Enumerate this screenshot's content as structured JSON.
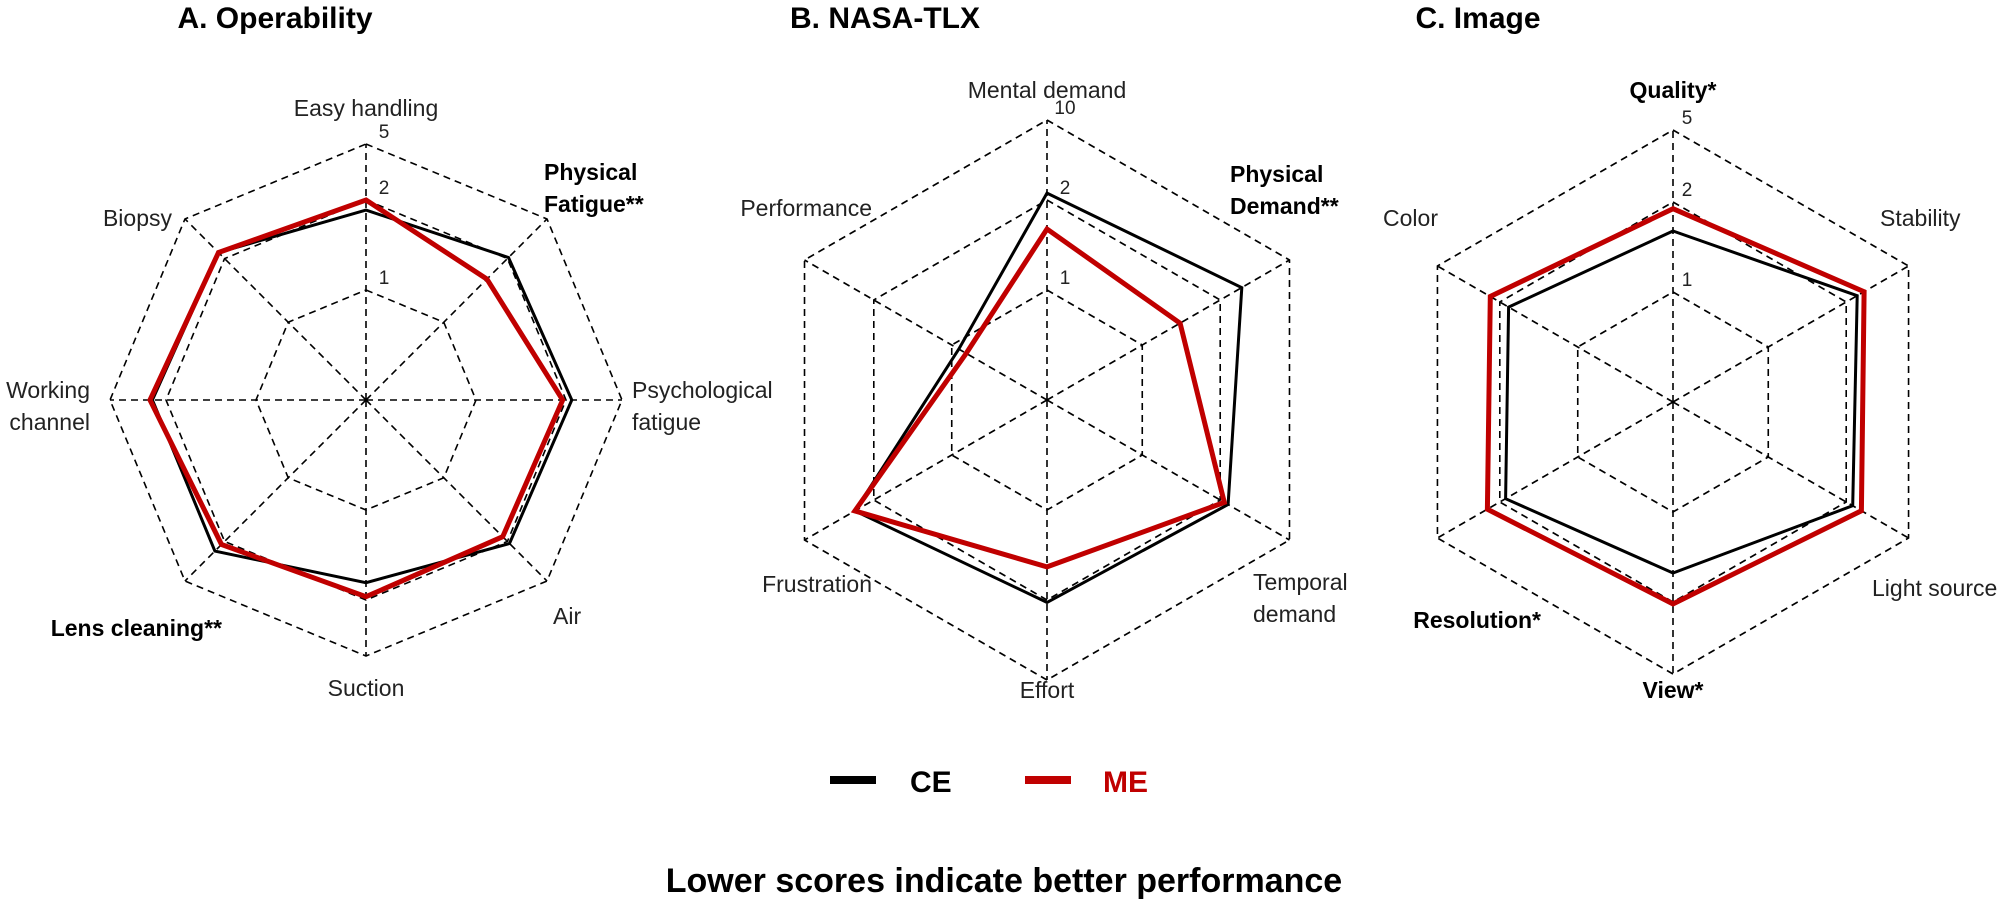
{
  "chart_data": [
    {
      "type": "radar",
      "title": "A. Operability",
      "axes": [
        {
          "label": [
            "Easy handling"
          ],
          "bold": false
        },
        {
          "label": [
            "Physical",
            "Fatigue**"
          ],
          "bold": true
        },
        {
          "label": [
            "Psychological",
            "fatigue"
          ],
          "bold": false
        },
        {
          "label": [
            "Air"
          ],
          "bold": false
        },
        {
          "label": [
            "Suction"
          ],
          "bold": false
        },
        {
          "label": [
            "Lens cleaning**"
          ],
          "bold": true
        },
        {
          "label": [
            "Working",
            "channel"
          ],
          "bold": false
        },
        {
          "label": [
            "Biopsy"
          ],
          "bold": false
        }
      ],
      "scale": "log",
      "range": [
        0.5,
        5
      ],
      "ticks": [
        {
          "value": 1,
          "label": "1"
        },
        {
          "value": 2,
          "label": "2"
        },
        {
          "value": 5,
          "label": "5"
        }
      ],
      "series": [
        {
          "name": "CE",
          "color": "#000000",
          "values": [
            1.85,
            2.05,
            2.2,
            2.1,
            1.75,
            2.5,
            2.5,
            2.3
          ]
        },
        {
          "name": "ME",
          "color": "#c00000",
          "values": [
            2.0,
            1.6,
            1.95,
            1.9,
            1.95,
            2.15,
            2.6,
            2.3
          ]
        }
      ]
    },
    {
      "type": "radar",
      "title": "B. NASA-TLX",
      "axes": [
        {
          "label": [
            "Mental demand"
          ],
          "bold": false
        },
        {
          "label": [
            "Physical",
            "Demand**"
          ],
          "bold": true
        },
        {
          "label": [
            "Temporal",
            "demand"
          ],
          "bold": false
        },
        {
          "label": [
            "Effort"
          ],
          "bold": false
        },
        {
          "label": [
            "Frustration"
          ],
          "bold": false
        },
        {
          "label": [
            "Performance"
          ],
          "bold": false
        }
      ],
      "scale": "log",
      "range": [
        0.5,
        10
      ],
      "ticks": [
        {
          "value": 1,
          "label": "1"
        },
        {
          "value": 2,
          "label": "2"
        },
        {
          "value": 10,
          "label": "10"
        }
      ],
      "series": [
        {
          "name": "CE",
          "color": "#000000",
          "values": [
            2.3,
            3.3,
            2.4,
            2.1,
            3.1,
            0.95
          ]
        },
        {
          "name": "ME",
          "color": "#c00000",
          "values": [
            1.6,
            1.4,
            2.2,
            1.55,
            3.1,
            0.9
          ]
        }
      ]
    },
    {
      "type": "radar",
      "title": "C. Image",
      "axes": [
        {
          "label": [
            "Quality*"
          ],
          "bold": true
        },
        {
          "label": [
            "Stability"
          ],
          "bold": false
        },
        {
          "label": [
            "Light source"
          ],
          "bold": false
        },
        {
          "label": [
            "View*"
          ],
          "bold": true
        },
        {
          "label": [
            "Resolution*"
          ],
          "bold": true
        },
        {
          "label": [
            "Color"
          ],
          "bold": false
        }
      ],
      "scale": "log",
      "range": [
        0.5,
        5
      ],
      "ticks": [
        {
          "value": 1,
          "label": "1"
        },
        {
          "value": 2,
          "label": "2"
        },
        {
          "value": 5,
          "label": "5"
        }
      ],
      "series": [
        {
          "name": "CE",
          "color": "#000000",
          "values": [
            1.6,
            2.35,
            2.2,
            1.6,
            1.9,
            1.85
          ]
        },
        {
          "name": "ME",
          "color": "#c00000",
          "values": [
            1.9,
            2.6,
            2.5,
            2.05,
            2.4,
            2.3
          ]
        }
      ]
    }
  ],
  "legend": [
    {
      "name": "CE",
      "color": "#000000"
    },
    {
      "name": "ME",
      "color": "#c00000"
    }
  ],
  "footer": "Lower scores indicate better performance"
}
